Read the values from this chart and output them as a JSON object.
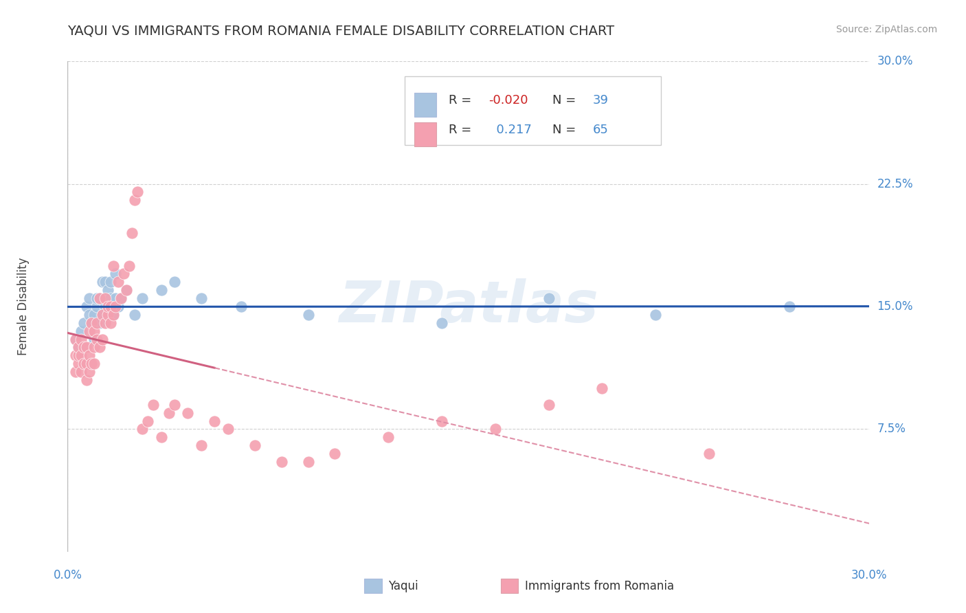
{
  "title": "YAQUI VS IMMIGRANTS FROM ROMANIA FEMALE DISABILITY CORRELATION CHART",
  "source": "Source: ZipAtlas.com",
  "ylabel": "Female Disability",
  "xlim": [
    0.0,
    0.3
  ],
  "ylim": [
    0.0,
    0.3
  ],
  "yaqui_R": -0.02,
  "yaqui_N": 39,
  "romania_R": 0.217,
  "romania_N": 65,
  "yaqui_color": "#a8c4e0",
  "romania_color": "#f4a0b0",
  "yaqui_line_color": "#2255aa",
  "romania_line_color": "#d06080",
  "romania_line_color_dashed": "#e090a8",
  "watermark": "ZIPatlas",
  "yaqui_x": [
    0.003,
    0.004,
    0.005,
    0.006,
    0.007,
    0.008,
    0.008,
    0.009,
    0.01,
    0.01,
    0.011,
    0.011,
    0.012,
    0.012,
    0.013,
    0.013,
    0.014,
    0.014,
    0.015,
    0.015,
    0.016,
    0.016,
    0.017,
    0.018,
    0.018,
    0.019,
    0.02,
    0.022,
    0.025,
    0.028,
    0.035,
    0.04,
    0.05,
    0.065,
    0.09,
    0.14,
    0.18,
    0.22,
    0.27
  ],
  "yaqui_y": [
    0.13,
    0.125,
    0.135,
    0.14,
    0.15,
    0.145,
    0.155,
    0.14,
    0.13,
    0.145,
    0.15,
    0.155,
    0.14,
    0.155,
    0.145,
    0.165,
    0.15,
    0.165,
    0.145,
    0.16,
    0.155,
    0.165,
    0.145,
    0.155,
    0.17,
    0.15,
    0.155,
    0.16,
    0.145,
    0.155,
    0.16,
    0.165,
    0.155,
    0.15,
    0.145,
    0.14,
    0.155,
    0.145,
    0.15
  ],
  "romania_x": [
    0.003,
    0.003,
    0.003,
    0.004,
    0.004,
    0.004,
    0.005,
    0.005,
    0.005,
    0.006,
    0.006,
    0.007,
    0.007,
    0.007,
    0.008,
    0.008,
    0.008,
    0.009,
    0.009,
    0.01,
    0.01,
    0.01,
    0.011,
    0.011,
    0.012,
    0.012,
    0.013,
    0.013,
    0.014,
    0.014,
    0.015,
    0.015,
    0.016,
    0.016,
    0.017,
    0.017,
    0.018,
    0.019,
    0.02,
    0.021,
    0.022,
    0.023,
    0.024,
    0.025,
    0.026,
    0.028,
    0.03,
    0.032,
    0.035,
    0.038,
    0.04,
    0.045,
    0.05,
    0.055,
    0.06,
    0.07,
    0.08,
    0.09,
    0.1,
    0.12,
    0.14,
    0.16,
    0.18,
    0.2,
    0.24
  ],
  "romania_y": [
    0.11,
    0.12,
    0.13,
    0.115,
    0.12,
    0.125,
    0.11,
    0.12,
    0.13,
    0.115,
    0.125,
    0.105,
    0.115,
    0.125,
    0.11,
    0.12,
    0.135,
    0.115,
    0.14,
    0.115,
    0.125,
    0.135,
    0.13,
    0.14,
    0.125,
    0.155,
    0.13,
    0.145,
    0.14,
    0.155,
    0.145,
    0.15,
    0.14,
    0.15,
    0.145,
    0.175,
    0.15,
    0.165,
    0.155,
    0.17,
    0.16,
    0.175,
    0.195,
    0.215,
    0.22,
    0.075,
    0.08,
    0.09,
    0.07,
    0.085,
    0.09,
    0.085,
    0.065,
    0.08,
    0.075,
    0.065,
    0.055,
    0.055,
    0.06,
    0.07,
    0.08,
    0.075,
    0.09,
    0.1,
    0.06
  ]
}
